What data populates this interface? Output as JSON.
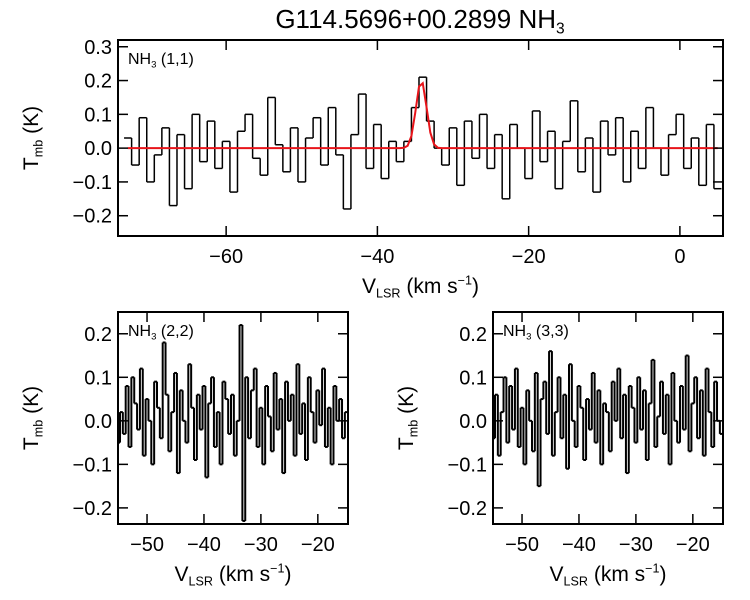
{
  "chart_data": [
    {
      "type": "step",
      "title": [
        {
          "text": "G114.5696+00.2899 NH"
        },
        {
          "text": "3",
          "sub": true
        }
      ],
      "label": [
        {
          "text": "NH"
        },
        {
          "text": "3",
          "sub": true
        },
        {
          "text": " (1,1)"
        }
      ],
      "xlabel": [
        {
          "text": "V"
        },
        {
          "text": "LSR",
          "sub": true
        },
        {
          "text": " (km s"
        },
        {
          "text": "−1",
          "sup": true
        },
        {
          "text": ")"
        }
      ],
      "ylabel": [
        {
          "text": "T"
        },
        {
          "text": "mb",
          "sub": true
        },
        {
          "text": " (K)"
        }
      ],
      "xlim": [
        -74.3,
        5.7
      ],
      "ylim": [
        -0.26,
        0.32
      ],
      "xticks": [
        {
          "value": -60,
          "label": "−60"
        },
        {
          "value": -40,
          "label": "−40"
        },
        {
          "value": -20,
          "label": "−20"
        },
        0
      ],
      "yticks": [
        {
          "value": -0.2,
          "label": "−0.2"
        },
        {
          "value": -0.1,
          "label": "−0.1"
        },
        {
          "value": 0,
          "label": "0.0"
        },
        0.1,
        0.2,
        0.3
      ],
      "series": [
        {
          "color": "#000000",
          "x": [
            -73,
            -72,
            -71,
            -70,
            -69,
            -68,
            -67,
            -66,
            -65,
            -64,
            -63,
            -62,
            -61,
            -60,
            -59,
            -58,
            -57,
            -56,
            -55,
            -54,
            -53,
            -52,
            -51,
            -50,
            -49,
            -48,
            -47,
            -46,
            -45,
            -44,
            -43,
            -42,
            -41,
            -40,
            -39,
            -38,
            -37,
            -36,
            -35,
            -34,
            -33,
            -32,
            -31,
            -30,
            -29,
            -28,
            -27,
            -26,
            -25,
            -24,
            -23,
            -22,
            -21,
            -20,
            -19,
            -18,
            -17,
            -16,
            -15,
            -14,
            -13,
            -12,
            -11,
            -10,
            -9,
            -8,
            -7,
            -6,
            -5,
            -4,
            -3,
            -2,
            -1,
            0,
            1,
            2,
            3,
            4,
            5
          ],
          "values": [
            0.03,
            -0.05,
            0.09,
            -0.1,
            -0.02,
            0.06,
            -0.17,
            0.04,
            -0.12,
            0.1,
            -0.04,
            0.08,
            -0.06,
            0.02,
            -0.13,
            0.05,
            0.1,
            -0.03,
            -0.08,
            0.15,
            0.01,
            -0.07,
            0.06,
            -0.1,
            0.03,
            0.09,
            -0.05,
            0.12,
            -0.02,
            -0.18,
            0.04,
            0.16,
            -0.06,
            0.07,
            -0.09,
            0.02,
            -0.04,
            0.02,
            0.12,
            0.21,
            0.08,
            0.0,
            -0.05,
            0.06,
            -0.11,
            0.08,
            -0.03,
            0.1,
            -0.06,
            0.04,
            -0.15,
            0.07,
            0.0,
            -0.09,
            0.11,
            -0.04,
            0.05,
            -0.12,
            0.02,
            0.14,
            -0.07,
            0.03,
            -0.13,
            0.08,
            -0.02,
            0.09,
            -0.1,
            0.05,
            -0.06,
            0.12,
            0.0,
            -0.08,
            0.04,
            0.1,
            -0.06,
            0.03,
            -0.11,
            0.07,
            -0.12
          ]
        },
        {
          "type": "line",
          "color": "#e8141a",
          "x": [
            -73,
            -37,
            -36.5,
            -36,
            -35.5,
            -35,
            -34.5,
            -34,
            -33.5,
            -33,
            -32.5,
            -32,
            -31.5,
            5
          ],
          "values": [
            0,
            0,
            0.001,
            0.007,
            0.036,
            0.104,
            0.182,
            0.192,
            0.121,
            0.046,
            0.011,
            0.001,
            0,
            0
          ]
        }
      ]
    },
    {
      "type": "step",
      "label": [
        {
          "text": "NH"
        },
        {
          "text": "3",
          "sub": true
        },
        {
          "text": " (2,2)"
        }
      ],
      "xlabel": [
        {
          "text": "V"
        },
        {
          "text": "LSR",
          "sub": true
        },
        {
          "text": " (km s"
        },
        {
          "text": "−1",
          "sup": true
        },
        {
          "text": ")"
        }
      ],
      "ylabel": [
        {
          "text": "T"
        },
        {
          "text": "mb",
          "sub": true
        },
        {
          "text": " (K)"
        }
      ],
      "xlim": [
        -55.1,
        -14.7
      ],
      "ylim": [
        -0.237,
        0.25
      ],
      "xticks": [
        {
          "value": -50,
          "label": "−50"
        },
        {
          "value": -40,
          "label": "−40"
        },
        {
          "value": -30,
          "label": "−30"
        },
        {
          "value": -20,
          "label": "−20"
        }
      ],
      "yticks": [
        {
          "value": -0.2,
          "label": "−0.2"
        },
        {
          "value": -0.1,
          "label": "−0.1"
        },
        {
          "value": 0,
          "label": "0.0"
        },
        0.1,
        0.2
      ],
      "series": [
        {
          "color": "#000000",
          "x": [
            -55,
            -54.5,
            -54,
            -53.5,
            -53,
            -52.5,
            -52,
            -51.5,
            -51,
            -50.5,
            -50,
            -49.5,
            -49,
            -48.5,
            -48,
            -47.5,
            -47,
            -46.5,
            -46,
            -45.5,
            -45,
            -44.5,
            -44,
            -43.5,
            -43,
            -42.5,
            -42,
            -41.5,
            -41,
            -40.5,
            -40,
            -39.5,
            -39,
            -38.5,
            -38,
            -37.5,
            -37,
            -36.5,
            -36,
            -35.5,
            -35,
            -34.5,
            -34,
            -33.5,
            -33,
            -32.5,
            -32,
            -31.5,
            -31,
            -30.5,
            -30,
            -29.5,
            -29,
            -28.5,
            -28,
            -27.5,
            -27,
            -26.5,
            -26,
            -25.5,
            -25,
            -24.5,
            -24,
            -23.5,
            -23,
            -22.5,
            -22,
            -21.5,
            -21,
            -20.5,
            -20,
            -19.5,
            -19,
            -18.5,
            -18,
            -17.5,
            -17,
            -16.5,
            -16,
            -15.5,
            -15
          ],
          "values": [
            -0.05,
            0.02,
            -0.03,
            0.08,
            -0.06,
            0.1,
            0.04,
            -0.02,
            0.12,
            -0.08,
            0.05,
            0.0,
            -0.1,
            0.09,
            0.03,
            -0.04,
            0.18,
            0.06,
            -0.07,
            0.02,
            0.11,
            -0.12,
            0.07,
            0.0,
            -0.05,
            0.13,
            0.03,
            -0.09,
            0.06,
            -0.02,
            0.08,
            -0.13,
            0.04,
            0.1,
            -0.06,
            0.02,
            -0.1,
            0.09,
            0.05,
            -0.03,
            0.06,
            -0.08,
            0.0,
            0.22,
            -0.23,
            0.1,
            -0.04,
            0.07,
            0.12,
            -0.06,
            0.03,
            -0.1,
            0.08,
            0.01,
            -0.07,
            0.11,
            -0.02,
            0.05,
            -0.12,
            0.09,
            0.0,
            0.06,
            -0.08,
            0.13,
            -0.03,
            0.04,
            -0.09,
            0.1,
            0.02,
            -0.05,
            0.07,
            -0.01,
            0.12,
            -0.06,
            0.03,
            -0.1,
            0.08,
            0.0,
            0.05,
            -0.04,
            0.02
          ]
        }
      ]
    },
    {
      "type": "step",
      "label": [
        {
          "text": "NH"
        },
        {
          "text": "3",
          "sub": true
        },
        {
          "text": " (3,3)"
        }
      ],
      "xlabel": [
        {
          "text": "V"
        },
        {
          "text": "LSR",
          "sub": true
        },
        {
          "text": " (km s"
        },
        {
          "text": "−1",
          "sup": true
        },
        {
          "text": ")"
        }
      ],
      "ylabel": [
        {
          "text": "T"
        },
        {
          "text": "mb",
          "sub": true
        },
        {
          "text": " (K)"
        }
      ],
      "xlim": [
        -55.1,
        -14.7
      ],
      "ylim": [
        -0.237,
        0.25
      ],
      "xticks": [
        {
          "value": -50,
          "label": "−50"
        },
        {
          "value": -40,
          "label": "−40"
        },
        {
          "value": -30,
          "label": "−30"
        },
        {
          "value": -20,
          "label": "−20"
        }
      ],
      "yticks": [
        {
          "value": -0.2,
          "label": "−0.2"
        },
        {
          "value": -0.1,
          "label": "−0.1"
        },
        {
          "value": 0,
          "label": "0.0"
        },
        0.1,
        0.2
      ],
      "series": [
        {
          "color": "#000000",
          "x": [
            -55,
            -54.5,
            -54,
            -53.5,
            -53,
            -52.5,
            -52,
            -51.5,
            -51,
            -50.5,
            -50,
            -49.5,
            -49,
            -48.5,
            -48,
            -47.5,
            -47,
            -46.5,
            -46,
            -45.5,
            -45,
            -44.5,
            -44,
            -43.5,
            -43,
            -42.5,
            -42,
            -41.5,
            -41,
            -40.5,
            -40,
            -39.5,
            -39,
            -38.5,
            -38,
            -37.5,
            -37,
            -36.5,
            -36,
            -35.5,
            -35,
            -34.5,
            -34,
            -33.5,
            -33,
            -32.5,
            -32,
            -31.5,
            -31,
            -30.5,
            -30,
            -29.5,
            -29,
            -28.5,
            -28,
            -27.5,
            -27,
            -26.5,
            -26,
            -25.5,
            -25,
            -24.5,
            -24,
            -23.5,
            -23,
            -22.5,
            -22,
            -21.5,
            -21,
            -20.5,
            -20,
            -19.5,
            -19,
            -18.5,
            -18,
            -17.5,
            -17,
            -16.5,
            -16,
            -15.5,
            -15
          ],
          "values": [
            -0.04,
            0.06,
            -0.08,
            0.02,
            0.1,
            -0.05,
            0.08,
            -0.02,
            0.12,
            -0.06,
            0.03,
            -0.1,
            0.07,
            0.0,
            -0.07,
            0.11,
            -0.15,
            0.05,
            0.09,
            -0.03,
            0.16,
            -0.08,
            0.02,
            0.1,
            -0.04,
            0.06,
            -0.11,
            0.13,
            0.0,
            -0.06,
            0.08,
            0.03,
            -0.09,
            0.05,
            -0.02,
            0.11,
            -0.05,
            0.07,
            -0.1,
            0.04,
            0.02,
            -0.07,
            0.09,
            0.0,
            0.12,
            -0.04,
            0.06,
            -0.12,
            0.08,
            0.03,
            -0.05,
            0.1,
            -0.02,
            0.07,
            -0.09,
            0.04,
            0.14,
            -0.06,
            0.01,
            0.09,
            -0.03,
            0.06,
            -0.1,
            0.11,
            0.0,
            -0.05,
            0.08,
            -0.02,
            0.15,
            -0.07,
            0.04,
            0.1,
            -0.04,
            0.07,
            -0.08,
            0.12,
            0.02,
            -0.06,
            0.09,
            0.0,
            -0.03
          ]
        }
      ]
    }
  ]
}
